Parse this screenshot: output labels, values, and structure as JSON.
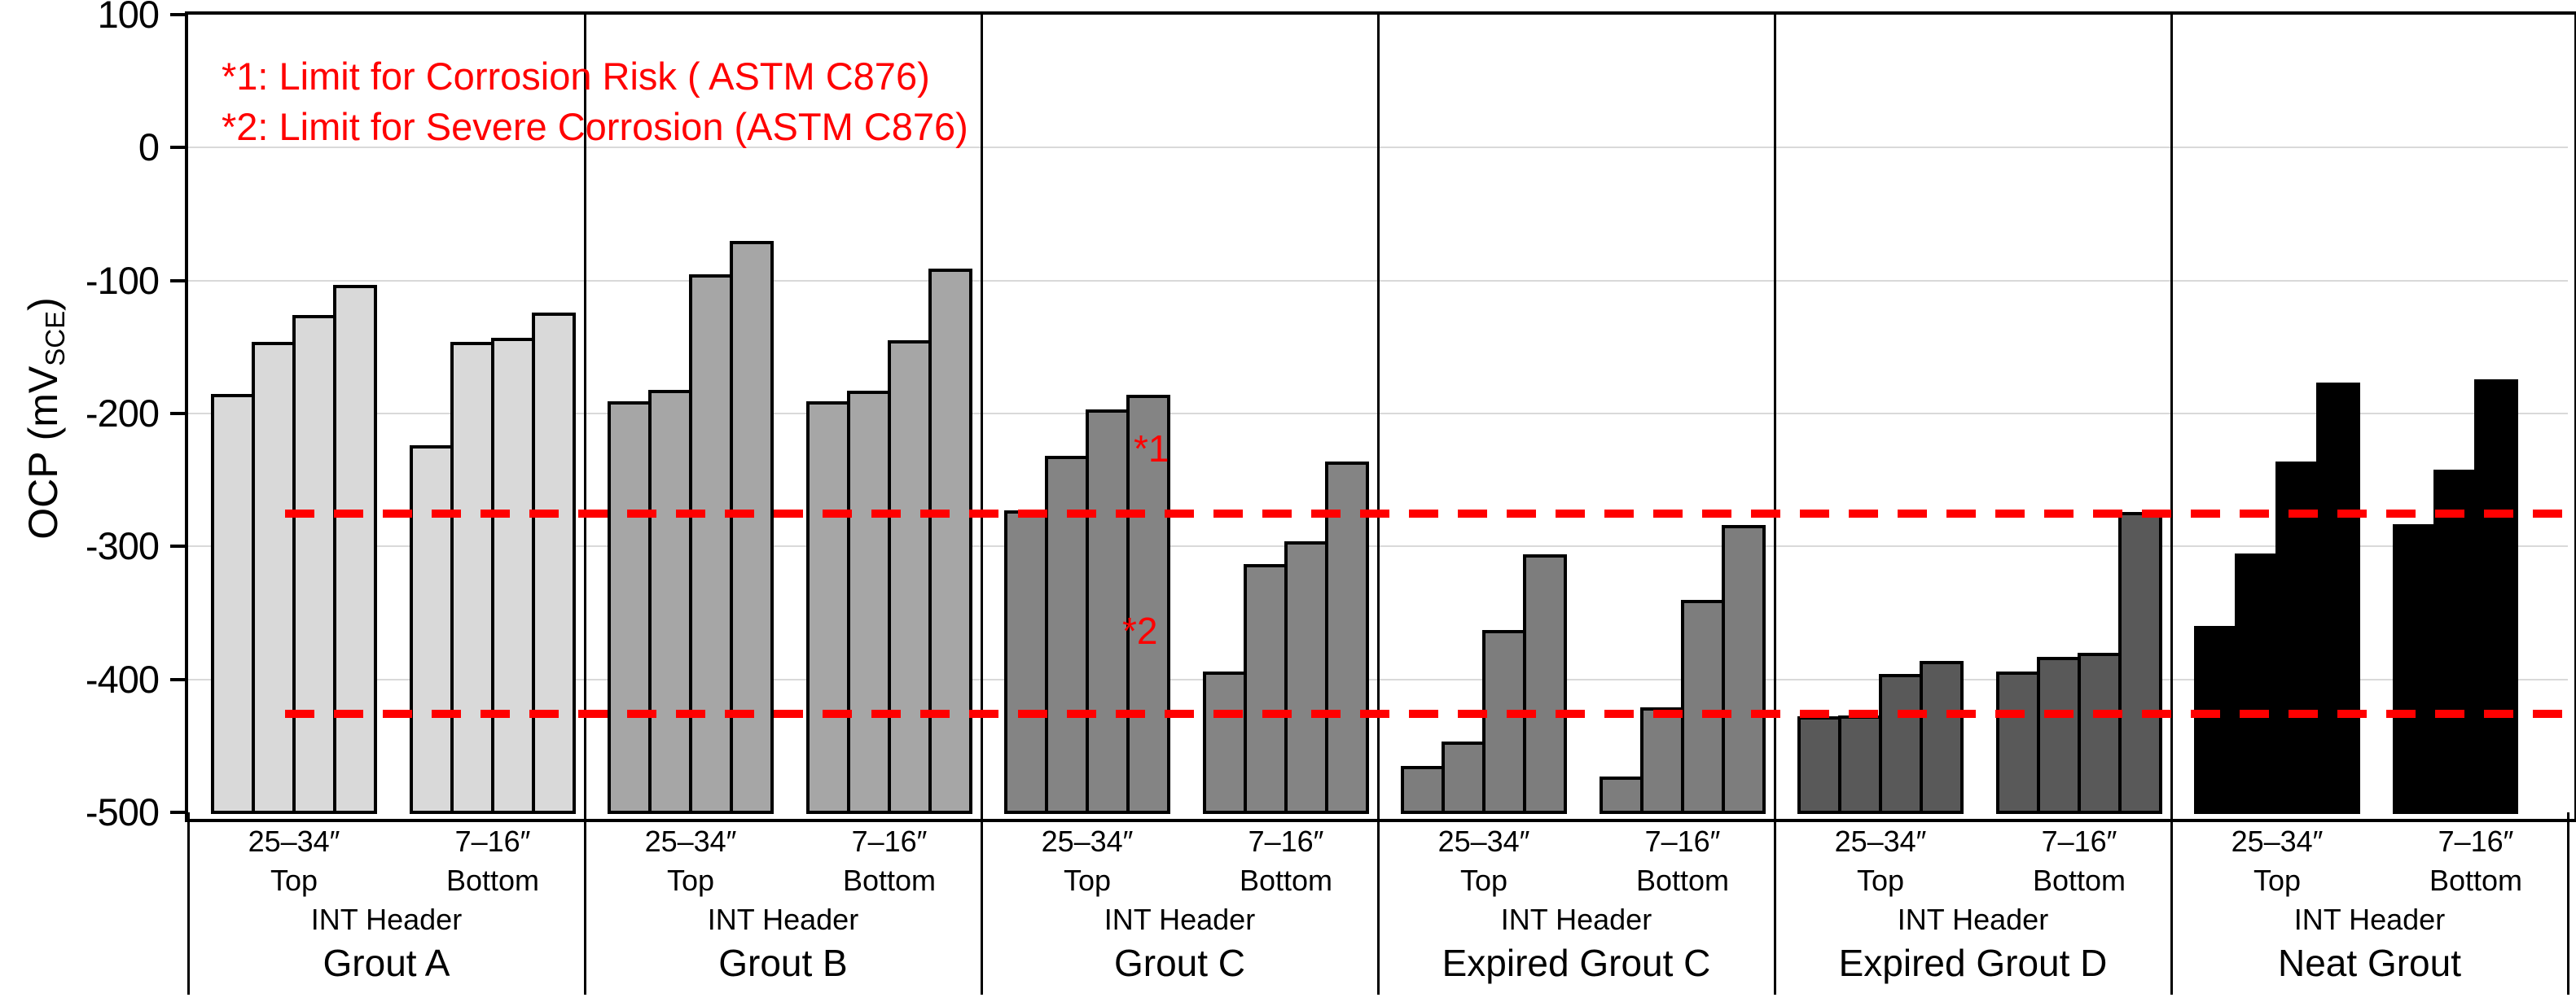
{
  "annotations": {
    "line1": "*1: Limit for Corrosion Risk ( ASTM C876)",
    "line2": "*2: Limit for Severe Corrosion (ASTM C876)"
  },
  "y_axis": {
    "title_pre": "OCP (mV",
    "title_sub": "SCE",
    "title_post": ")",
    "tick_labels": [
      "100",
      "0",
      "-100",
      "-200",
      "-300",
      "-400",
      "-500"
    ],
    "tick_values": [
      100,
      0,
      -100,
      -200,
      -300,
      -400,
      -500
    ]
  },
  "chart_data": {
    "type": "bar",
    "title": "",
    "xlabel": "",
    "ylabel": "OCP (mV SCE)",
    "ylim": [
      -500,
      100
    ],
    "grid": true,
    "legend_position": "none",
    "reference_lines": [
      {
        "label": "*1",
        "value": -275,
        "meaning": "Limit for Corrosion Risk ( ASTM C876)",
        "color": "#ff0000",
        "style": "dashed"
      },
      {
        "label": "*2",
        "value": -426,
        "meaning": "Limit for Severe Corrosion (ASTM C876)",
        "color": "#ff0000",
        "style": "dashed"
      }
    ],
    "groups": [
      {
        "name": "Grout A",
        "header": "INT Header",
        "color": "#d9d9d9",
        "subgroups": [
          {
            "depth": "25–34″",
            "position": "Top",
            "values": [
              -185,
              -146,
              -126,
              -103
            ]
          },
          {
            "depth": "7–16″",
            "position": "Bottom",
            "values": [
              -224,
              -146,
              -143,
              -124
            ]
          }
        ]
      },
      {
        "name": "Grout B",
        "header": "INT Header",
        "color": "#a6a6a6",
        "subgroups": [
          {
            "depth": "25–34″",
            "position": "Top",
            "values": [
              -191,
              -182,
              -95,
              -70
            ]
          },
          {
            "depth": "7–16″",
            "position": "Bottom",
            "values": [
              -191,
              -183,
              -145,
              -91
            ]
          }
        ]
      },
      {
        "name": "Grout C",
        "header": "INT Header",
        "color": "#848484",
        "subgroups": [
          {
            "depth": "25–34″",
            "position": "Top",
            "values": [
              -273,
              -232,
              -197,
              -186
            ]
          },
          {
            "depth": "7–16″",
            "position": "Bottom",
            "values": [
              -394,
              -313,
              -296,
              -236
            ]
          }
        ]
      },
      {
        "name": "Expired Grout C",
        "header": "INT Header",
        "color": "#7d7d7d",
        "subgroups": [
          {
            "depth": "25–34″",
            "position": "Top",
            "values": [
              -465,
              -447,
              -363,
              -306
            ]
          },
          {
            "depth": "7–16″",
            "position": "Bottom",
            "values": [
              -473,
              -421,
              -340,
              -284
            ]
          }
        ]
      },
      {
        "name": "Expired Grout D",
        "header": "INT Header",
        "color": "#595959",
        "subgroups": [
          {
            "depth": "25–34″",
            "position": "Top",
            "values": [
              -428,
              -427,
              -396,
              -386
            ]
          },
          {
            "depth": "7–16″",
            "position": "Bottom",
            "values": [
              -394,
              -383,
              -380,
              -274
            ]
          }
        ]
      },
      {
        "name": "Neat Grout",
        "header": "INT Header",
        "color": "#000000",
        "subgroups": [
          {
            "depth": "25–34″",
            "position": "Top",
            "values": [
              -360,
              -305,
              -236,
              -177
            ]
          },
          {
            "depth": "7–16″",
            "position": "Bottom",
            "values": [
              -283,
              -242,
              -174
            ]
          }
        ]
      }
    ]
  }
}
